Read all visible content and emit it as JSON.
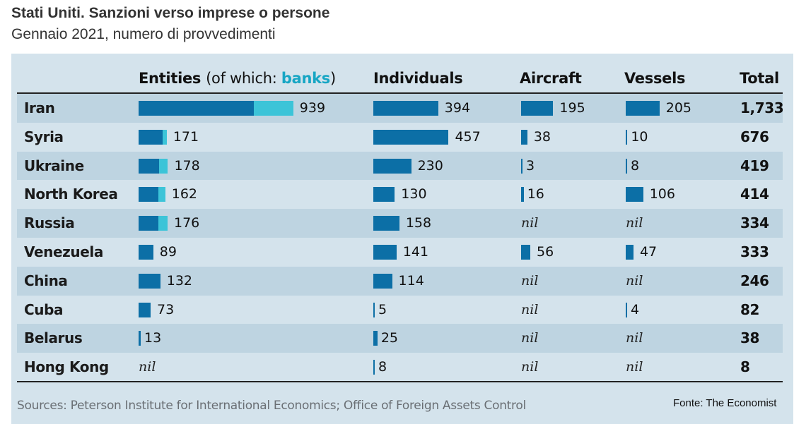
{
  "title": "Stati Uniti. Sanzioni verso imprese o persone",
  "subtitle": "Gennaio 2021, numero di provvedimenti",
  "columns": {
    "entities": "Entities",
    "entities_paren_open": "(of which: ",
    "entities_banks": "banks",
    "entities_paren_close": ")",
    "individuals": "Individuals",
    "aircraft": "Aircraft",
    "vessels": "Vessels",
    "total": "Total"
  },
  "nil_label": "nil",
  "sources": "Sources: Peterson Institute for International Economics; Office of Foreign Assets Control",
  "fonte": "Fonte: The Economist",
  "colors": {
    "bar": "#0c6fa6",
    "banks": "#3cc4d8",
    "panel": "#d4e3ec",
    "stripe": "#bed4e1"
  },
  "chart_data": {
    "type": "table",
    "rows": [
      {
        "country": "Iran",
        "entities": 939,
        "banks": 240,
        "individuals": 394,
        "aircraft": 195,
        "vessels": 205,
        "total": "1,733"
      },
      {
        "country": "Syria",
        "entities": 171,
        "banks": 25,
        "individuals": 457,
        "aircraft": 38,
        "vessels": 10,
        "total": "676"
      },
      {
        "country": "Ukraine",
        "entities": 178,
        "banks": 55,
        "individuals": 230,
        "aircraft": 3,
        "vessels": 8,
        "total": "419"
      },
      {
        "country": "North Korea",
        "entities": 162,
        "banks": 40,
        "individuals": 130,
        "aircraft": 16,
        "vessels": 106,
        "total": "414"
      },
      {
        "country": "Russia",
        "entities": 176,
        "banks": 55,
        "individuals": 158,
        "aircraft": null,
        "vessels": null,
        "total": "334"
      },
      {
        "country": "Venezuela",
        "entities": 89,
        "banks": 0,
        "individuals": 141,
        "aircraft": 56,
        "vessels": 47,
        "total": "333"
      },
      {
        "country": "China",
        "entities": 132,
        "banks": 0,
        "individuals": 114,
        "aircraft": null,
        "vessels": null,
        "total": "246"
      },
      {
        "country": "Cuba",
        "entities": 73,
        "banks": 0,
        "individuals": 5,
        "aircraft": null,
        "vessels": 4,
        "total": "82"
      },
      {
        "country": "Belarus",
        "entities": 13,
        "banks": 0,
        "individuals": 25,
        "aircraft": null,
        "vessels": null,
        "total": "38"
      },
      {
        "country": "Hong Kong",
        "entities": null,
        "banks": 0,
        "individuals": 8,
        "aircraft": null,
        "vessels": null,
        "total": "8"
      }
    ]
  }
}
